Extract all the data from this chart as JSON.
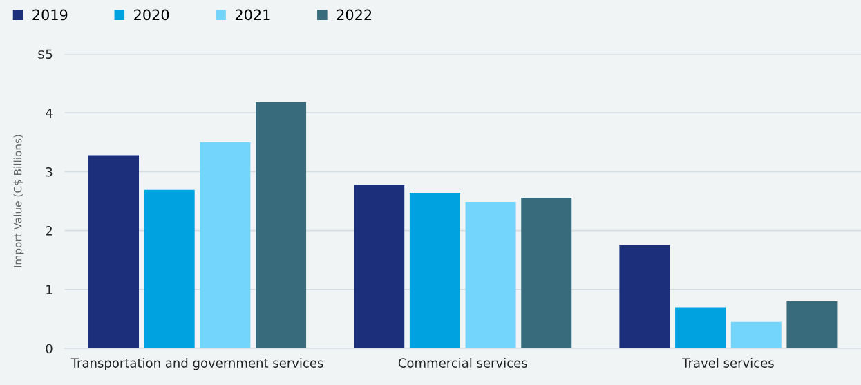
{
  "chart_data": {
    "type": "bar",
    "ylabel": "Import Value (C$ Billions)",
    "categories": [
      "Transportation and government services",
      "Commercial services",
      "Travel services"
    ],
    "series": [
      {
        "name": "2019",
        "color": "#1b2f7a",
        "values": [
          3.28,
          2.78,
          1.75
        ]
      },
      {
        "name": "2020",
        "color": "#00a3e0",
        "values": [
          2.69,
          2.64,
          0.7
        ]
      },
      {
        "name": "2021",
        "color": "#73d5fb",
        "values": [
          3.5,
          2.49,
          0.45
        ]
      },
      {
        "name": "2022",
        "color": "#386b7c",
        "values": [
          4.18,
          2.56,
          0.8
        ]
      }
    ],
    "ylim": [
      0,
      5
    ],
    "yticks": [
      0,
      1,
      2,
      3,
      4,
      {
        "value": 5,
        "label": "$5"
      }
    ],
    "grid": "y",
    "legend": "top left"
  }
}
